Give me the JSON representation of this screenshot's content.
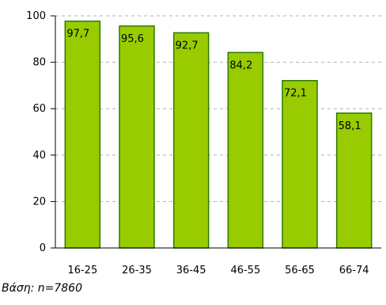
{
  "chart_data": {
    "type": "bar",
    "categories": [
      "16-25",
      "26-35",
      "36-45",
      "46-55",
      "56-65",
      "66-74"
    ],
    "values": [
      97.7,
      95.6,
      92.7,
      84.2,
      72.1,
      58.1
    ],
    "value_labels": [
      "97,7",
      "95,6",
      "92,7",
      "84,2",
      "72,1",
      "58,1"
    ],
    "ylim": [
      0,
      100
    ],
    "yticks": [
      0,
      20,
      40,
      60,
      80,
      100
    ],
    "ytick_labels": [
      "0",
      "20",
      "40",
      "60",
      "80",
      "100"
    ],
    "grid": "horizontal dashed",
    "legend": "none",
    "bar_color": "#99cc00",
    "bar_edge_color": "#2d7a00"
  },
  "footnote": "Βάση: n=7860"
}
